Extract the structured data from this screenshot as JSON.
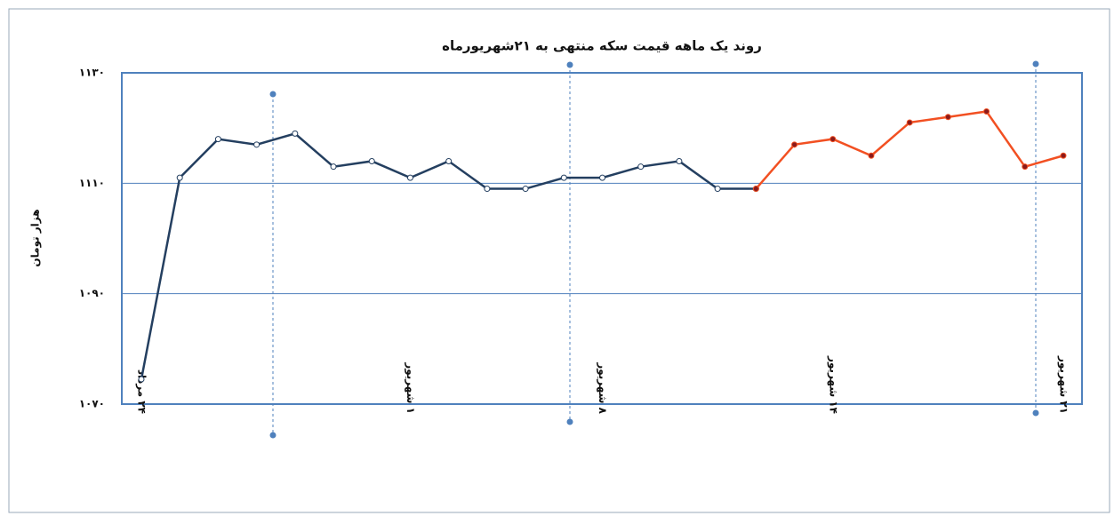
{
  "chart_data": {
    "type": "line",
    "title": "روند  یک ماهه قیمت سکه منتهی به ۲۱شهریورماه",
    "y_label": "هزار تومان",
    "categories": [
      "۲۴ مرداد",
      null,
      null,
      null,
      null,
      null,
      null,
      "۱ شهریور",
      null,
      null,
      null,
      null,
      "۸ شهریور",
      null,
      null,
      null,
      null,
      null,
      "۱۴ شهریور",
      null,
      null,
      null,
      null,
      null,
      "۲۱ شهریور"
    ],
    "series": [
      {
        "color": "#243f60",
        "marker_fill": "#ffffff",
        "values": [
          1074.5,
          1111,
          1118,
          1117,
          1119,
          1113,
          1114,
          1111,
          1114,
          1109,
          1109,
          1111,
          1111,
          1113,
          1114,
          1109,
          1109,
          null,
          null,
          null,
          null,
          null,
          null,
          null,
          null
        ]
      },
      {
        "color": "#f25022",
        "marker_fill": "#8b1a1a",
        "values": [
          null,
          null,
          null,
          null,
          null,
          null,
          null,
          null,
          null,
          null,
          null,
          null,
          null,
          null,
          null,
          null,
          1109,
          1117,
          1118,
          1115,
          1121,
          1122,
          1123,
          1113,
          1115
        ]
      }
    ],
    "ylim": [
      1070,
      1130
    ],
    "yticks": [
      {
        "value": 1070,
        "label": "۱۰۷۰"
      },
      {
        "value": 1090,
        "label": "۱۰۹۰"
      },
      {
        "value": 1110,
        "label": "۱۱۱۰"
      },
      {
        "value": 1130,
        "label": "۱۱۳۰"
      }
    ],
    "grid": true
  }
}
